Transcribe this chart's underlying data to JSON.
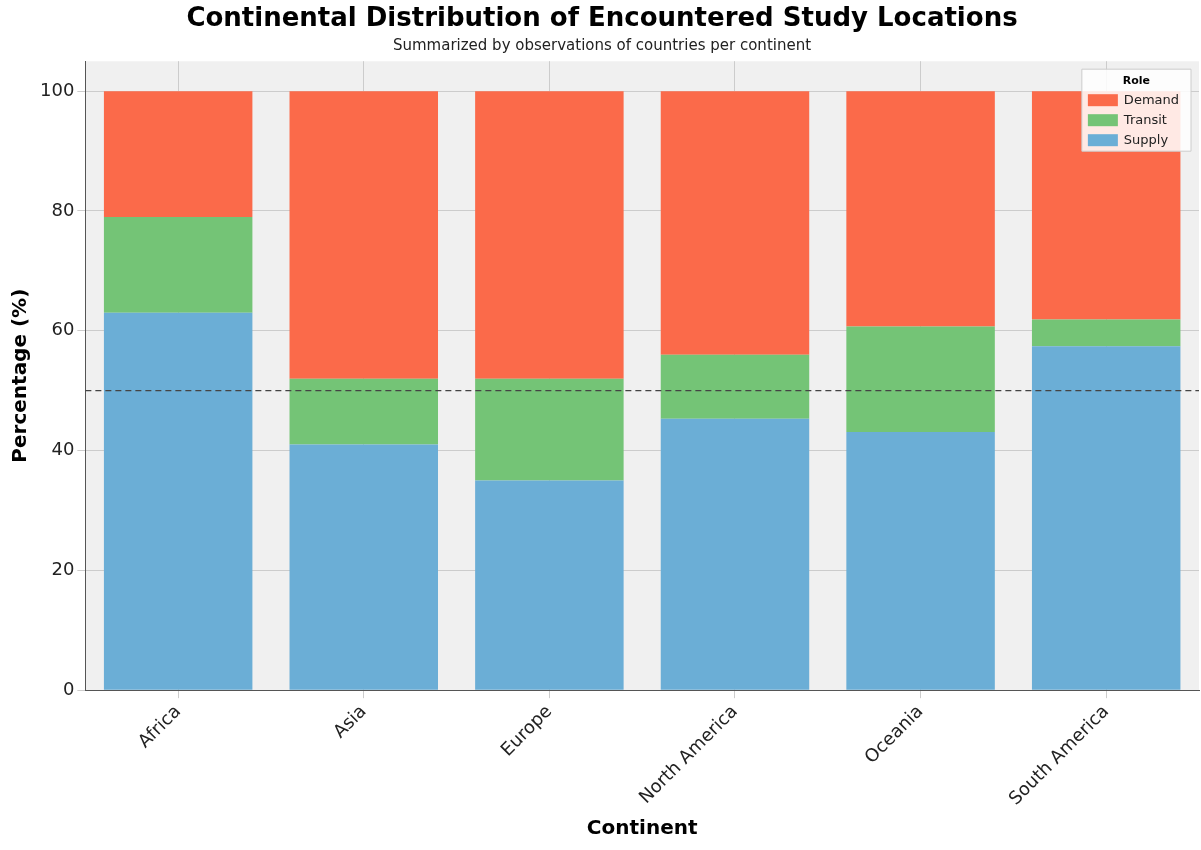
{
  "chart_data": {
    "type": "bar",
    "title": "Continental Distribution of Encountered Study Locations",
    "subtitle": "Summarized by observations of countries per continent",
    "xlabel": "Continent",
    "ylabel": "Percentage (%)",
    "legend_title": "Role",
    "categories": [
      "Africa",
      "Asia",
      "Europe",
      "North America",
      "Oceania",
      "South America"
    ],
    "series": [
      {
        "name": "Supply",
        "color": "#6baed6",
        "values": [
          63,
          41,
          35,
          45.3,
          43.1,
          57.4
        ]
      },
      {
        "name": "Transit",
        "color": "#74c476",
        "values": [
          16,
          11,
          17,
          10.7,
          17.6,
          4.5
        ]
      },
      {
        "name": "Demand",
        "color": "#fb6a4a",
        "values": [
          21,
          48,
          48,
          44,
          39.3,
          38.1
        ]
      }
    ],
    "stacked": true,
    "ylim": [
      0,
      105
    ],
    "yticks": [
      0,
      20,
      40,
      60,
      80,
      100
    ],
    "grid": true,
    "legend": "top right",
    "ref_lines": [
      {
        "axis": "y",
        "value": 50,
        "color": "#444444",
        "line_style": "dashed"
      }
    ]
  }
}
